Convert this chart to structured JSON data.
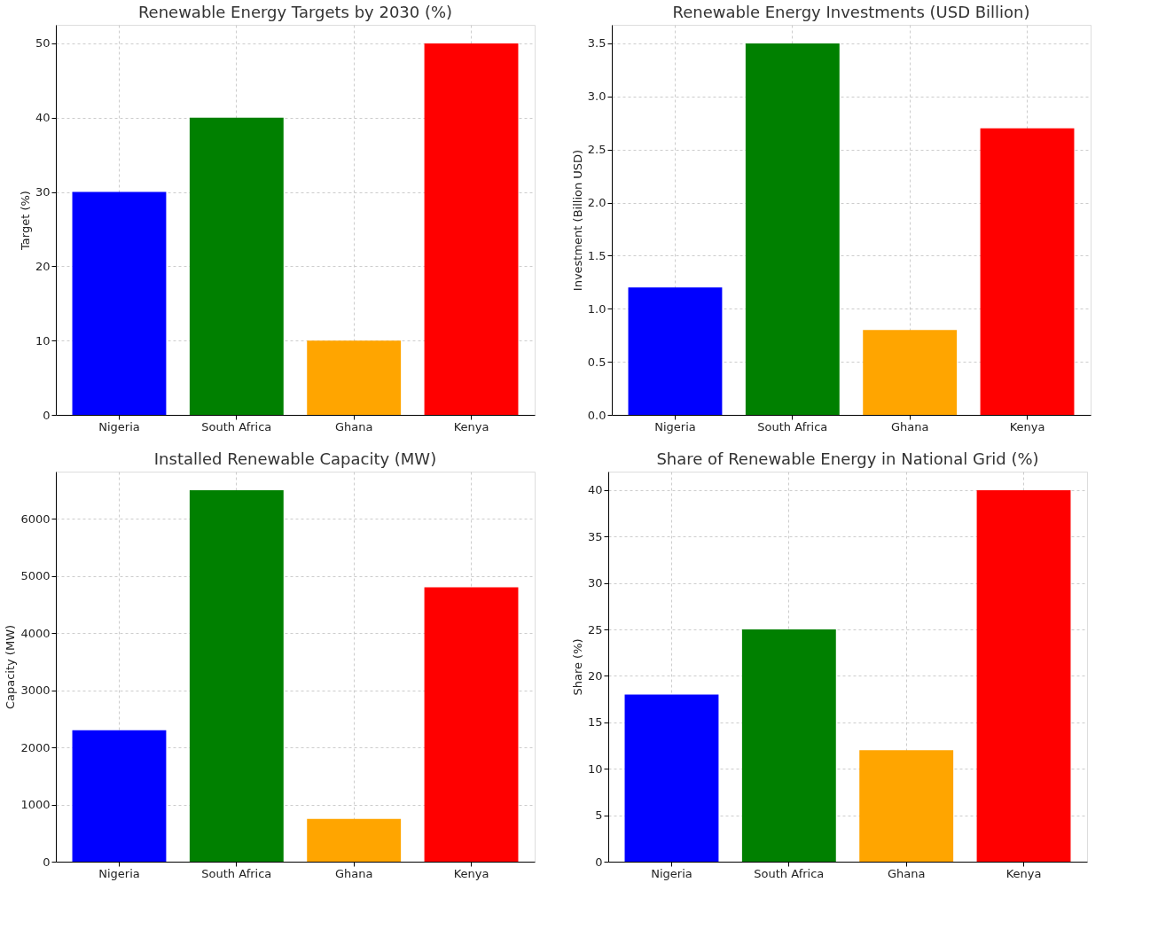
{
  "chart_data": [
    {
      "type": "bar",
      "title": "Renewable Energy Targets by 2030 (%)",
      "ylabel": "Target (%)",
      "categories": [
        "Nigeria",
        "South Africa",
        "Ghana",
        "Kenya"
      ],
      "values": [
        30,
        40,
        10,
        50
      ],
      "colors": [
        "#0000ff",
        "#008000",
        "#ffa500",
        "#ff0000"
      ],
      "ylim": [
        0,
        52.5
      ],
      "yticks": [
        0,
        10,
        20,
        30,
        40,
        50
      ],
      "grid": true
    },
    {
      "type": "bar",
      "title": "Renewable Energy Investments (USD Billion)",
      "ylabel": "Investment (Billion USD)",
      "categories": [
        "Nigeria",
        "South Africa",
        "Ghana",
        "Kenya"
      ],
      "values": [
        1.2,
        3.5,
        0.8,
        2.7
      ],
      "colors": [
        "#0000ff",
        "#008000",
        "#ffa500",
        "#ff0000"
      ],
      "ylim": [
        0,
        3.675
      ],
      "yticks": [
        {
          "value": 0,
          "label": "0.0"
        },
        {
          "value": 0.5,
          "label": "0.5"
        },
        {
          "value": 1,
          "label": "1.0"
        },
        {
          "value": 1.5,
          "label": "1.5"
        },
        {
          "value": 2,
          "label": "2.0"
        },
        {
          "value": 2.5,
          "label": "2.5"
        },
        {
          "value": 3,
          "label": "3.0"
        },
        {
          "value": 3.5,
          "label": "3.5"
        }
      ],
      "grid": true
    },
    {
      "type": "bar",
      "title": "Installed Renewable Capacity (MW)",
      "ylabel": "Capacity (MW)",
      "categories": [
        "Nigeria",
        "South Africa",
        "Ghana",
        "Kenya"
      ],
      "values": [
        2300,
        6500,
        750,
        4800
      ],
      "colors": [
        "#0000ff",
        "#008000",
        "#ffa500",
        "#ff0000"
      ],
      "ylim": [
        0,
        6825
      ],
      "yticks": [
        0,
        1000,
        2000,
        3000,
        4000,
        5000,
        6000
      ],
      "grid": true
    },
    {
      "type": "bar",
      "title": "Share of Renewable Energy in National Grid (%)",
      "ylabel": "Share (%)",
      "categories": [
        "Nigeria",
        "South Africa",
        "Ghana",
        "Kenya"
      ],
      "values": [
        18,
        25,
        12,
        40
      ],
      "colors": [
        "#0000ff",
        "#008000",
        "#ffa500",
        "#ff0000"
      ],
      "ylim": [
        0,
        42
      ],
      "yticks": [
        0,
        5,
        10,
        15,
        20,
        25,
        30,
        35,
        40
      ],
      "grid": true
    }
  ]
}
